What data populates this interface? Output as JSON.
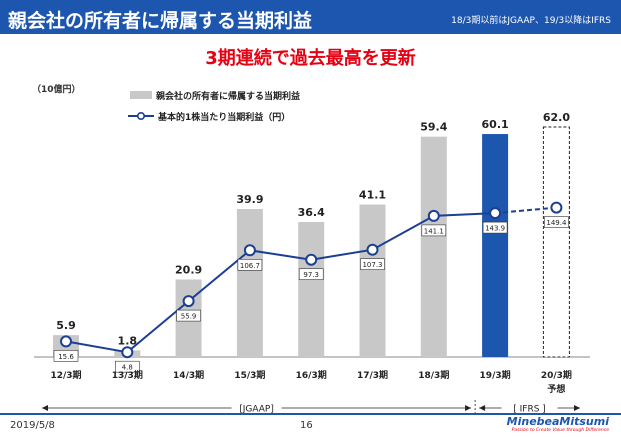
{
  "header": {
    "title": "親会社の所有者に帰属する当期利益",
    "note": "18/3期以前はJGAAP、19/3以降はIFRS"
  },
  "headline": "3期連続で過去最高を更新",
  "footer": {
    "date": "2019/5/8",
    "page": "16",
    "logo": "MinebeaMitsumi",
    "tagline": "Passion to Create Value through Difference"
  },
  "chart_data": {
    "type": "bar",
    "unit_label": "（10億円）",
    "categories": [
      "12/3期",
      "13/3期",
      "14/3期",
      "15/3期",
      "16/3期",
      "17/3期",
      "18/3期",
      "19/3期",
      "20/3期"
    ],
    "forecast_label": "予想",
    "series": [
      {
        "name": "親会社の所有者に帰属する当期利益",
        "type": "bar",
        "values": [
          5.9,
          1.8,
          20.9,
          39.9,
          36.4,
          41.1,
          59.4,
          60.1,
          62.0
        ],
        "labels": [
          "5.9",
          "1.8",
          "20.9",
          "39.9",
          "36.4",
          "41.1",
          "59.4",
          "60.1",
          "62.0"
        ],
        "colors": {
          "jgaap": "#c8c8c8",
          "ifrs": "#1c56ae",
          "forecast": "#ffffff"
        }
      },
      {
        "name": "基本的1株当たり当期利益（円）",
        "type": "line",
        "values": [
          15.6,
          4.8,
          55.9,
          106.7,
          97.3,
          107.3,
          141.1,
          143.9,
          149.4
        ],
        "labels": [
          "15.6",
          "4.8",
          "55.9",
          "106.7",
          "97.3",
          "107.3",
          "141.1",
          "143.9",
          "149.4"
        ],
        "color": "#1c3f94"
      }
    ],
    "periods": [
      {
        "label": "[JGAAP]",
        "from": "12/3期",
        "to": "18/3期"
      },
      {
        "label": "[ IFRS ]",
        "from": "19/3期",
        "to": "20/3期"
      }
    ],
    "legend_position": "top-left"
  }
}
